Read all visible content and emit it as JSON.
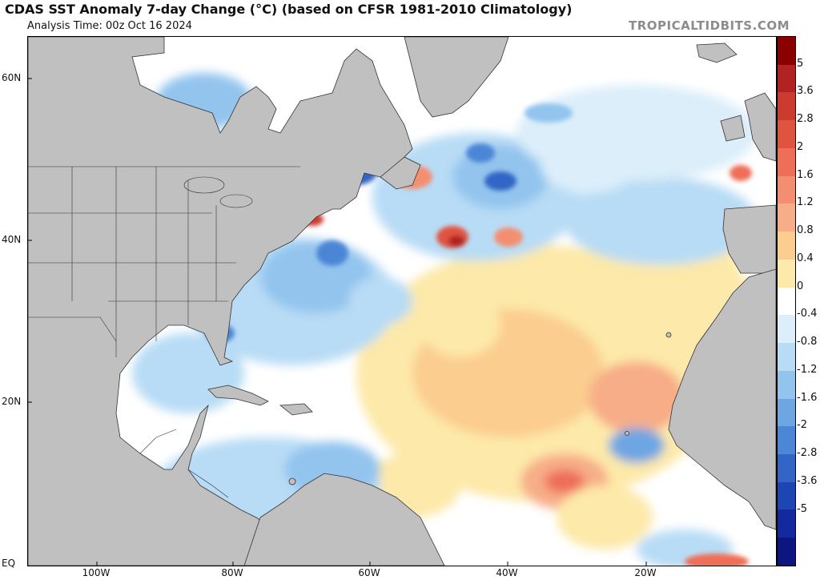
{
  "header": {
    "title": "CDAS SST Anomaly 7-day Change (°C) (based on CFSR 1981-2010 Climatology)",
    "analysis_time": "Analysis Time: 00z Oct 16 2024",
    "credit": "TROPICALTIDBITS.COM"
  },
  "axes": {
    "lat_labels": [
      "60N",
      "40N",
      "20N",
      "EQ"
    ],
    "lon_labels": [
      "100W",
      "80W",
      "60W",
      "40W",
      "20W"
    ]
  },
  "colorbar": {
    "labels": [
      "5",
      "3.6",
      "2.8",
      "2",
      "1.6",
      "1.2",
      "0.8",
      "0.4",
      "0",
      "-0.4",
      "-0.8",
      "-1.2",
      "-1.6",
      "-2",
      "-2.8",
      "-3.6",
      "-5"
    ],
    "colors": [
      "#8b0000",
      "#b22222",
      "#cd3b2e",
      "#e0533f",
      "#ee6e58",
      "#f48e70",
      "#f7ad87",
      "#fbcd8f",
      "#fde9a9",
      "#ffffff",
      "#dbeefa",
      "#b8dcf5",
      "#93c4ee",
      "#6ea6e3",
      "#4c86d6",
      "#3265c6",
      "#1e45b4",
      "#1428a0",
      "#0c1580"
    ]
  },
  "palette": {
    "land": "#c0c0c0",
    "ocean": "#ffffff",
    "border": "#333333"
  }
}
